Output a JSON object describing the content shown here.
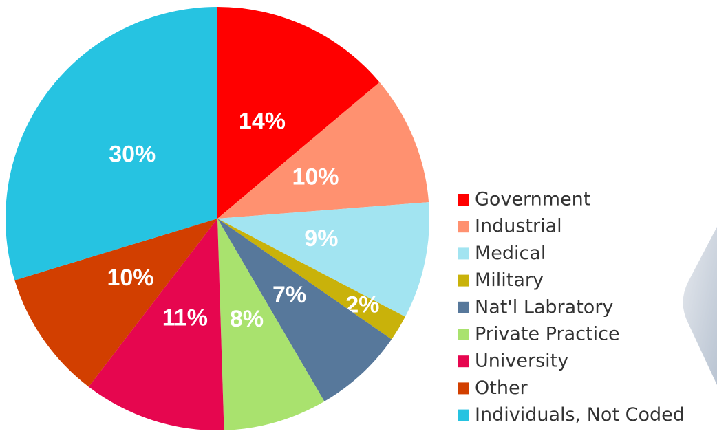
{
  "chart_data": {
    "type": "pie",
    "categories": [
      "Government",
      "Industrial",
      "Medical",
      "Military",
      "Nat'l Labratory",
      "Private Practice",
      "University",
      "Other",
      "Individuals, Not Coded"
    ],
    "values": [
      14,
      10,
      9,
      2,
      7,
      8,
      11,
      10,
      30
    ],
    "value_labels": [
      "14%",
      "10%",
      "9%",
      "2%",
      "7%",
      "8%",
      "11%",
      "10%",
      "30%"
    ],
    "colors": [
      "#ff0000",
      "#ff9170",
      "#a2e4f1",
      "#c9b20a",
      "#57789b",
      "#a9e26e",
      "#e6064f",
      "#d23f00",
      "#26c3e1"
    ],
    "legend": "right"
  }
}
